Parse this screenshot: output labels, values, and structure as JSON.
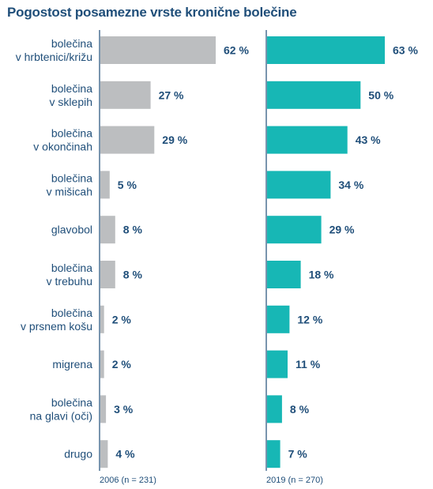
{
  "title": "Pogostost posamezne vrste kronične bolečine",
  "colors": {
    "title": "#1f4e79",
    "label": "#1f4e79",
    "value": "#1f4e79",
    "axis": "#1f4e79",
    "series_2006": "#bcbec0",
    "series_2019": "#17b7b5"
  },
  "chart_data": {
    "type": "bar",
    "orientation": "horizontal",
    "categories": [
      [
        "bolečina",
        "v hrbtenici/križu"
      ],
      [
        "bolečina",
        "v sklepih"
      ],
      [
        "bolečina",
        "v okončinah"
      ],
      [
        "bolečina",
        "v mišicah"
      ],
      [
        "glavobol"
      ],
      [
        "bolečina",
        "v trebuhu"
      ],
      [
        "bolečina",
        "v prsnem košu"
      ],
      [
        "migrena"
      ],
      [
        "bolečina",
        "na glavi (oči)"
      ],
      [
        "drugo"
      ]
    ],
    "series": [
      {
        "name": "2006 (n = 231)",
        "values": [
          62,
          27,
          29,
          5,
          8,
          8,
          2,
          2,
          3,
          4
        ],
        "labels": [
          "62 %",
          "27 %",
          "29 %",
          "5 %",
          "8 %",
          "8 %",
          "2 %",
          "2 %",
          "3 %",
          "4 %"
        ]
      },
      {
        "name": "2019 (n = 270)",
        "values": [
          63,
          50,
          43,
          34,
          29,
          18,
          12,
          11,
          8,
          7
        ],
        "labels": [
          "63 %",
          "50 %",
          "43 %",
          "34 %",
          "29 %",
          "18 %",
          "12 %",
          "11 %",
          "8 %",
          "7 %"
        ]
      }
    ],
    "unit": "%",
    "xlim": [
      0,
      100
    ],
    "grid": false,
    "legend": "panel labels below each panel"
  }
}
